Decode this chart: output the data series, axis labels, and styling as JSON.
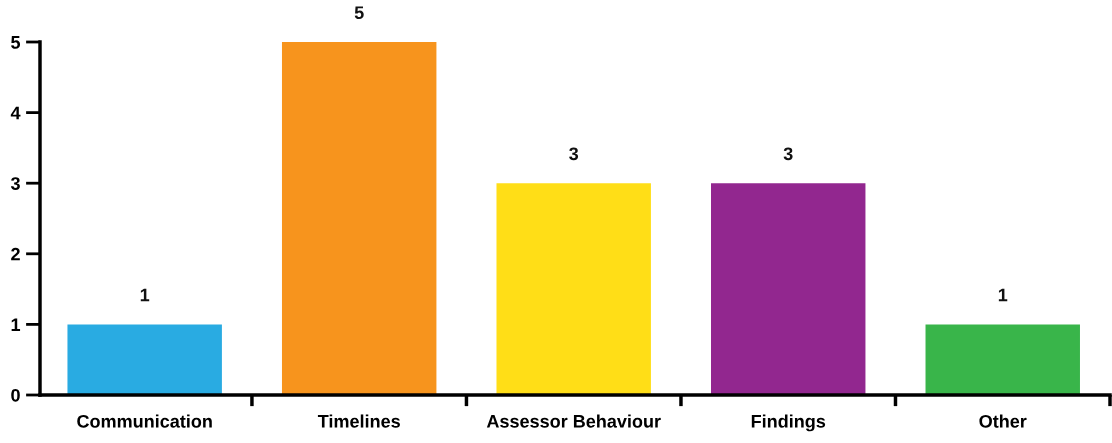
{
  "chart_data": {
    "type": "bar",
    "categories": [
      "Communication",
      "Timelines",
      "Assessor Behaviour",
      "Findings",
      "Other"
    ],
    "values": [
      1,
      5,
      3,
      3,
      1
    ],
    "colors": [
      "#29abe2",
      "#f7941d",
      "#ffde17",
      "#92278f",
      "#39b54a"
    ],
    "ylim": [
      0,
      5
    ],
    "yticks": [
      0,
      1,
      2,
      3,
      4,
      5
    ],
    "grid": false,
    "data_labels": true
  }
}
